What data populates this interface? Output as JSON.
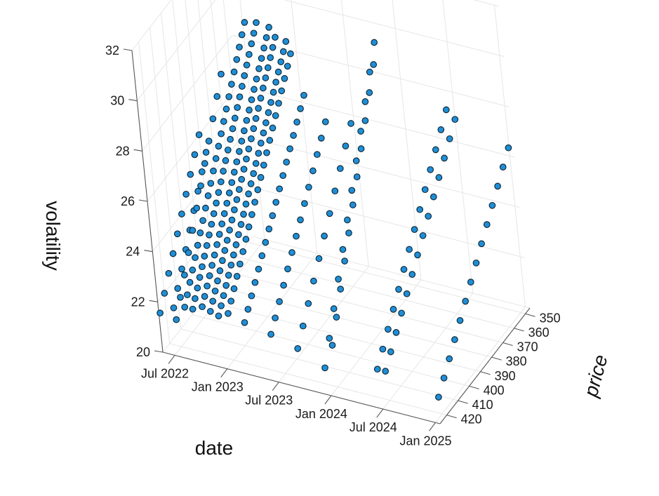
{
  "chart_data": {
    "type": "scatter",
    "title": "",
    "xlabel": "date",
    "ylabel": "price",
    "zlabel": "volatility",
    "grid": true,
    "colors": {
      "marker_fill": "#1f8ed6",
      "marker_edge": "#0b2230"
    },
    "date_ticks": [
      "Jul 2022",
      "Jan 2023",
      "Jul 2023",
      "Jan 2024",
      "Jul 2024",
      "Jan 2025"
    ],
    "price_ticks": [
      "350",
      "360",
      "370",
      "380",
      "390",
      "400",
      "410",
      "420"
    ],
    "vol_ticks": [
      "20",
      "22",
      "24",
      "26",
      "28",
      "30",
      "32"
    ],
    "date_range": [
      "2022-05-20",
      "2025-01-17"
    ],
    "price_range": [
      346,
      426
    ],
    "vol_range": [
      20,
      32
    ],
    "series": [
      {
        "expiry": "2022-05-20",
        "start_date": "2022-05-20",
        "price_min": 380,
        "price_max": 425,
        "vol_start": 21.5,
        "vol_end": 26.0,
        "count": 10
      },
      {
        "expiry": "2022-06-17",
        "start_date": "2022-06-17",
        "price_min": 382,
        "price_max": 420,
        "vol_start": 21.5,
        "vol_end": 25.5,
        "count": 9
      },
      {
        "expiry": "2022-07-15",
        "start_date": "2022-07-15",
        "price_min": 370,
        "price_max": 425,
        "vol_start": 21.4,
        "vol_end": 28.0,
        "count": 12
      },
      {
        "expiry": "2022-08-19",
        "start_date": "2022-08-19",
        "price_min": 355,
        "price_max": 425,
        "vol_start": 22.0,
        "vol_end": 29.3,
        "count": 24
      },
      {
        "expiry": "2022-09-16",
        "start_date": "2022-09-16",
        "price_min": 352,
        "price_max": 425,
        "vol_start": 22.0,
        "vol_end": 29.2,
        "count": 28
      },
      {
        "expiry": "2022-10-21",
        "start_date": "2022-10-21",
        "price_min": 350,
        "price_max": 425,
        "vol_start": 22.2,
        "vol_end": 29.0,
        "count": 28
      },
      {
        "expiry": "2022-11-18",
        "start_date": "2022-11-18",
        "price_min": 352,
        "price_max": 425,
        "vol_start": 22.1,
        "vol_end": 28.8,
        "count": 28
      },
      {
        "expiry": "2022-12-16",
        "start_date": "2022-12-16",
        "price_min": 350,
        "price_max": 425,
        "vol_start": 22.0,
        "vol_end": 28.6,
        "count": 28
      },
      {
        "expiry": "2023-01-20",
        "start_date": "2023-01-20",
        "price_min": 355,
        "price_max": 425,
        "vol_start": 22.2,
        "vol_end": 28.5,
        "count": 22
      },
      {
        "expiry": "2023-03-17",
        "start_date": "2023-03-17",
        "price_min": 360,
        "price_max": 425,
        "vol_start": 22.0,
        "vol_end": 27.3,
        "count": 18
      },
      {
        "expiry": "2023-06-16",
        "start_date": "2023-06-16",
        "price_min": 365,
        "price_max": 425,
        "vol_start": 21.8,
        "vol_end": 26.8,
        "count": 14
      },
      {
        "expiry": "2023-09-15",
        "start_date": "2023-09-15",
        "price_min": 365,
        "price_max": 425,
        "vol_start": 21.5,
        "vol_end": 27.0,
        "count": 11
      },
      {
        "expiry": "2023-12-15",
        "start_date": "2023-12-15",
        "price_min": 360,
        "price_max": 425,
        "vol_start": 21.0,
        "vol_end": 30.2,
        "count": 12
      },
      {
        "expiry": "2024-01-19",
        "start_date": "2024-01-19",
        "price_min": 370,
        "price_max": 425,
        "vol_start": 22.0,
        "vol_end": 30.0,
        "count": 11
      },
      {
        "expiry": "2024-06-21",
        "start_date": "2024-06-21",
        "price_min": 350,
        "price_max": 425,
        "vol_start": 21.5,
        "vol_end": 27.5,
        "count": 14
      },
      {
        "expiry": "2024-07-19",
        "start_date": "2024-07-19",
        "price_min": 350,
        "price_max": 425,
        "vol_start": 21.5,
        "vol_end": 27.2,
        "count": 14
      },
      {
        "expiry": "2025-01-17",
        "start_date": "2025-01-17",
        "price_min": 350,
        "price_max": 425,
        "vol_start": 21.0,
        "vol_end": 26.6,
        "count": 14
      }
    ]
  }
}
